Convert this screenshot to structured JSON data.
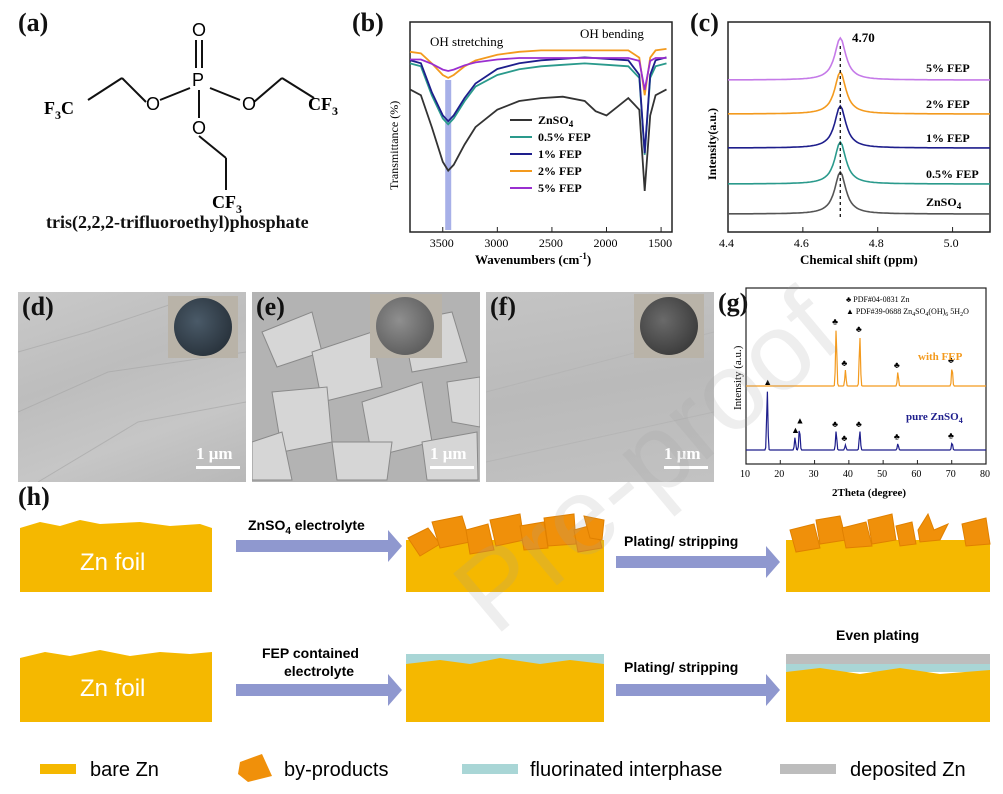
{
  "panels": {
    "a": {
      "label": "(a)",
      "compound_name": "tris(2,2,2-trifluoroethyl)phosphate",
      "atoms": {
        "P": "P",
        "O": "O",
        "CF3": "CF",
        "F3C": "F",
        "sub3": "3",
        "C": "C"
      }
    },
    "b": {
      "label": "(b)",
      "ylabel": "Transmittance (%)",
      "xlabel": "Wavenumbers (cm",
      "xlabel_sup": "-1",
      "xlabel_end": ")",
      "annotation_left": "OH stretching",
      "annotation_right": "OH bending",
      "legend": [
        "ZnSO",
        "0.5% FEP",
        "1% FEP",
        "2% FEP",
        "5% FEP"
      ],
      "legend_sub": "4",
      "ticks": [
        "3500",
        "3000",
        "2500",
        "2000",
        "1500"
      ]
    },
    "c": {
      "label": "(c)",
      "ylabel": "Intensity(a.u.)",
      "xlabel": "Chemical shift (ppm)",
      "peak_label": "4.70",
      "series_labels": [
        "5% FEP",
        "2% FEP",
        "1% FEP",
        "0.5% FEP",
        "ZnSO"
      ],
      "series_sub": "4",
      "ticks": [
        "4.4",
        "4.6",
        "4.8",
        "5.0"
      ]
    },
    "d": {
      "label": "(d)",
      "scale": "1 μm"
    },
    "e": {
      "label": "(e)",
      "scale": "1 μm"
    },
    "f": {
      "label": "(f)",
      "scale": "1 μm"
    },
    "g": {
      "label": "(g)",
      "ylabel": "Intensity (a.u.)",
      "xlabel": "2Theta (degree)",
      "legend_zn": "PDF#04-0831 Zn",
      "legend_byproduct": "PDF#39-0688 Zn",
      "legend_byproduct_formula": "SO",
      "legend_byproduct_rest": "(OH)",
      "legend_byproduct_hydrate": "5H",
      "legend_byproduct_o": "O",
      "sub": {
        "4": "4",
        "6": "6",
        "2": "2"
      },
      "series_with": "with FEP",
      "series_pure": "pure ZnSO",
      "ticks": [
        "10",
        "20",
        "30",
        "40",
        "50",
        "60",
        "70",
        "80"
      ]
    },
    "h": {
      "label": "(h)",
      "foil_label": "Zn foil",
      "step1_top": "ZnSO",
      "step1_top_sub": "4",
      "step1_top_rest": " electrolyte",
      "step1_bottom_line1": "FEP contained",
      "step1_bottom_line2": "electrolyte",
      "step2": "Plating/ stripping",
      "even": "Even plating",
      "legend": [
        "bare Zn",
        "by-products",
        "fluorinated interphase",
        "deposited Zn"
      ]
    }
  },
  "colors": {
    "zinc": "#f5b800",
    "byproduct": "#f0900a",
    "interphase": "#a9d6d6",
    "deposited": "#bdbdbd",
    "arrow": "#8f98cf",
    "ftir": [
      "#333333",
      "#2a9a8c",
      "#1e1e8c",
      "#f39a1e",
      "#9a2fd0"
    ],
    "peak_marker": "#8a95e0"
  },
  "watermark": "Pre-proof",
  "chart_data": [
    {
      "type": "line",
      "panel": "b",
      "xlabel": "Wavenumbers (cm-1)",
      "ylabel": "Transmittance (%)",
      "xlim": [
        3800,
        1400
      ],
      "x_reversed": true,
      "series": [
        {
          "name": "ZnSO4",
          "x": [
            3800,
            3700,
            3600,
            3500,
            3450,
            3400,
            3300,
            3200,
            3000,
            2800,
            2600,
            2400,
            2200,
            2100,
            2000,
            1900,
            1800,
            1700,
            1650,
            1600,
            1550,
            1450
          ],
          "y": [
            88,
            84,
            62,
            38,
            32,
            36,
            50,
            62,
            74,
            80,
            82,
            83,
            80,
            73,
            70,
            76,
            82,
            74,
            18,
            70,
            84,
            88
          ]
        },
        {
          "name": "0.5% FEP",
          "x": [
            3800,
            3700,
            3600,
            3500,
            3450,
            3400,
            3300,
            3200,
            3000,
            2800,
            2600,
            2400,
            2200,
            2000,
            1800,
            1700,
            1650,
            1600,
            1550,
            1450
          ],
          "y": [
            88,
            86,
            66,
            50,
            46,
            50,
            62,
            72,
            80,
            84,
            86,
            87,
            88,
            87,
            86,
            78,
            25,
            78,
            86,
            88
          ]
        },
        {
          "name": "1% FEP",
          "x": [
            3800,
            3700,
            3600,
            3500,
            3450,
            3400,
            3300,
            3200,
            3000,
            2800,
            2600,
            2400,
            2200,
            2000,
            1800,
            1700,
            1650,
            1600,
            1550,
            1450
          ],
          "y": [
            86,
            84,
            64,
            48,
            44,
            48,
            60,
            70,
            80,
            84,
            86,
            87,
            88,
            87,
            86,
            76,
            22,
            76,
            86,
            88
          ]
        },
        {
          "name": "2% FEP",
          "x": [
            3800,
            3700,
            3600,
            3500,
            3450,
            3400,
            3300,
            3200,
            3000,
            2800,
            2600,
            2400,
            2200,
            2000,
            1800,
            1700,
            1650,
            1600,
            1550,
            1450
          ],
          "y": [
            96,
            95,
            88,
            80,
            78,
            80,
            86,
            90,
            94,
            96,
            97,
            97,
            97,
            97,
            97,
            92,
            66,
            92,
            97,
            98
          ]
        },
        {
          "name": "5% FEP",
          "x": [
            3800,
            3700,
            3600,
            3500,
            3450,
            3400,
            3300,
            3200,
            3000,
            2800,
            2600,
            2400,
            2200,
            2000,
            1800,
            1700,
            1650,
            1600,
            1550,
            1450
          ],
          "y": [
            99,
            99,
            96,
            92,
            91,
            92,
            95,
            97,
            99,
            100,
            100,
            100,
            100,
            100,
            100,
            98,
            78,
            98,
            100,
            100
          ]
        }
      ]
    },
    {
      "type": "line",
      "panel": "c",
      "xlabel": "Chemical shift (ppm)",
      "ylabel": "Intensity(a.u.)",
      "xlim": [
        4.4,
        5.1
      ],
      "peak": 4.7,
      "series": [
        {
          "name": "ZnSO4"
        },
        {
          "name": "0.5% FEP"
        },
        {
          "name": "1% FEP"
        },
        {
          "name": "2% FEP"
        },
        {
          "name": "5% FEP"
        }
      ]
    },
    {
      "type": "bar",
      "panel": "g",
      "xlabel": "2Theta (degree)",
      "ylabel": "Intensity (a.u.)",
      "xlim": [
        10,
        80
      ],
      "series": [
        {
          "name": "with FEP",
          "x": [
            36.3,
            39.0,
            43.2,
            54.3,
            70.1
          ],
          "y": [
            0.9,
            0.25,
            0.78,
            0.22,
            0.3
          ]
        },
        {
          "name": "pure ZnSO4",
          "x": [
            16.2,
            24.3,
            25.6,
            36.3,
            39.0,
            43.2,
            54.3,
            70.1
          ],
          "y": [
            0.95,
            0.2,
            0.35,
            0.3,
            0.08,
            0.3,
            0.1,
            0.12
          ]
        }
      ]
    }
  ]
}
